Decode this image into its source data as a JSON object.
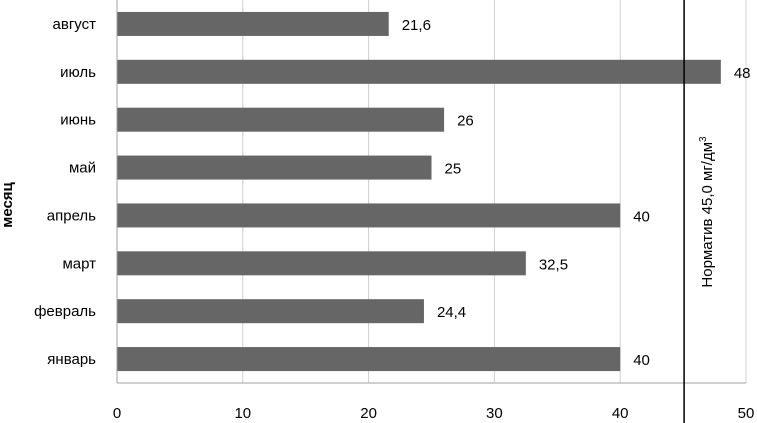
{
  "chart_data": {
    "type": "bar",
    "orientation": "horizontal",
    "ylabel": "месяц",
    "xlabel": "",
    "title": "",
    "categories": [
      "август",
      "июль",
      "июнь",
      "май",
      "апрель",
      "март",
      "февраль",
      "январь"
    ],
    "values": [
      21.6,
      48,
      26,
      25,
      40,
      32.5,
      24.4,
      40
    ],
    "value_labels": [
      "21,6",
      "48",
      "26",
      "25",
      "40",
      "32,5",
      "24,4",
      "40"
    ],
    "xlim": [
      0,
      50
    ],
    "xticks": [
      0,
      10,
      20,
      30,
      40,
      50
    ],
    "grid": "vertical",
    "bar_color": "#666666",
    "grid_color": "#d0d0d0",
    "reference_line": {
      "value": 45,
      "label_main": "Норматив 45,0 мг/дм",
      "label_sup": "3"
    }
  }
}
